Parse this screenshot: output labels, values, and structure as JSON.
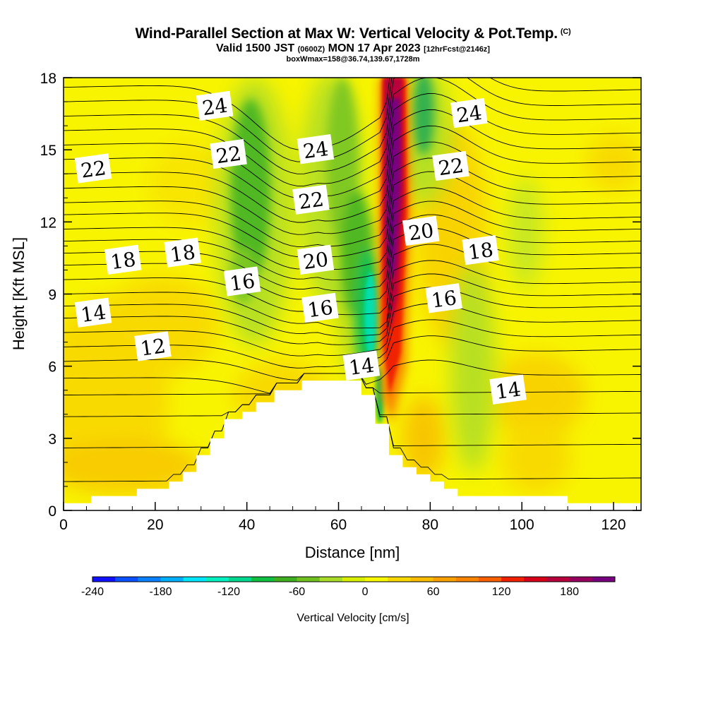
{
  "title": {
    "main": "Wind-Parallel Section at Max W: Vertical Velocity & Pot.Temp.",
    "copyright": "(C)",
    "valid_prefix": "Valid 1500 JST",
    "valid_utc": "(0600Z)",
    "valid_date": "MON 17 Apr 2023",
    "forecast": "[12hrFcst@2146z]",
    "box": "boxWmax=158@36.74,139.67,1728m"
  },
  "chart_data": {
    "type": "heatmap",
    "xlabel": "Distance [nm]",
    "ylabel": "Height [Kft MSL]",
    "xlim": [
      0,
      126
    ],
    "ylim": [
      0,
      18
    ],
    "xticks": [
      "0",
      "20",
      "40",
      "60",
      "80",
      "100",
      "120"
    ],
    "yticks": [
      "0",
      "3",
      "6",
      "9",
      "12",
      "15",
      "18"
    ],
    "colorbar": {
      "label": "Vertical Velocity [cm/s]",
      "min": -240,
      "max": 220,
      "step": 20,
      "ticks": [
        "-240",
        "-180",
        "-120",
        "-60",
        "0",
        "60",
        "120",
        "180"
      ],
      "colors": [
        "#1010ff",
        "#0a50ff",
        "#0a80ff",
        "#00b0ff",
        "#00e6ff",
        "#00f0c0",
        "#00d890",
        "#10c040",
        "#40b020",
        "#70c020",
        "#a8dc28",
        "#d8f000",
        "#f8f800",
        "#f8d800",
        "#f8bc00",
        "#f8a000",
        "#f88400",
        "#f86000",
        "#f02000",
        "#d80018",
        "#b8003c",
        "#980060",
        "#780080"
      ]
    },
    "vertical_velocity_features": [
      {
        "kind": "updraft",
        "x_center": 71.5,
        "y_range": [
          3.5,
          18
        ],
        "peak_cm_s": 220
      },
      {
        "kind": "downdraft",
        "x_center": 65,
        "y_range": [
          4,
          18
        ],
        "peak_cm_s": -140
      },
      {
        "kind": "downdraft",
        "x_center": 40,
        "y_range": [
          7,
          18
        ],
        "peak_cm_s": -100
      },
      {
        "kind": "downdraft",
        "x_center": 78,
        "y_range": [
          12,
          18
        ],
        "peak_cm_s": -80
      },
      {
        "kind": "downdraft",
        "x_center": 92,
        "y_range": [
          1,
          8
        ],
        "peak_cm_s": -40
      }
    ],
    "terrain": [
      [
        0,
        0.3
      ],
      [
        6,
        0.3
      ],
      [
        6,
        0.6
      ],
      [
        16,
        0.6
      ],
      [
        16,
        0.9
      ],
      [
        23,
        0.9
      ],
      [
        23,
        1.2
      ],
      [
        26,
        1.2
      ],
      [
        26,
        1.6
      ],
      [
        29,
        1.6
      ],
      [
        29,
        2.3
      ],
      [
        32,
        2.3
      ],
      [
        32,
        3
      ],
      [
        35,
        3
      ],
      [
        35,
        3.8
      ],
      [
        39,
        3.8
      ],
      [
        39,
        4.1
      ],
      [
        42,
        4.1
      ],
      [
        42,
        4.5
      ],
      [
        46,
        4.5
      ],
      [
        46,
        5.0
      ],
      [
        52,
        5.0
      ],
      [
        52,
        5.4
      ],
      [
        65,
        5.4
      ],
      [
        65,
        4.8
      ],
      [
        68,
        4.8
      ],
      [
        68,
        3.6
      ],
      [
        71,
        3.6
      ],
      [
        71,
        2.3
      ],
      [
        74,
        2.3
      ],
      [
        74,
        1.8
      ],
      [
        77,
        1.8
      ],
      [
        77,
        1.5
      ],
      [
        80,
        1.5
      ],
      [
        80,
        1.2
      ],
      [
        83,
        1.2
      ],
      [
        83,
        0.9
      ],
      [
        86,
        0.9
      ],
      [
        86,
        0.6
      ],
      [
        110,
        0.6
      ],
      [
        110,
        0.3
      ],
      [
        126,
        0.3
      ]
    ],
    "isentrope_labels": [
      {
        "text": "24",
        "x": 33,
        "y": 16.8
      },
      {
        "text": "22",
        "x": 6.5,
        "y": 14.2
      },
      {
        "text": "22",
        "x": 36,
        "y": 14.8
      },
      {
        "text": "24",
        "x": 55,
        "y": 15.0
      },
      {
        "text": "22",
        "x": 54,
        "y": 12.9
      },
      {
        "text": "24",
        "x": 88.5,
        "y": 16.5
      },
      {
        "text": "22",
        "x": 84.5,
        "y": 14.3
      },
      {
        "text": "20",
        "x": 78,
        "y": 11.6
      },
      {
        "text": "18",
        "x": 13,
        "y": 10.4
      },
      {
        "text": "18",
        "x": 26,
        "y": 10.7
      },
      {
        "text": "20",
        "x": 55,
        "y": 10.4
      },
      {
        "text": "18",
        "x": 91,
        "y": 10.8
      },
      {
        "text": "16",
        "x": 39,
        "y": 9.5
      },
      {
        "text": "16",
        "x": 56,
        "y": 8.4
      },
      {
        "text": "16",
        "x": 83,
        "y": 8.8
      },
      {
        "text": "14",
        "x": 6.5,
        "y": 8.2
      },
      {
        "text": "12",
        "x": 19.5,
        "y": 6.8
      },
      {
        "text": "14",
        "x": 65,
        "y": 6.0
      },
      {
        "text": "14",
        "x": 97,
        "y": 5.0
      }
    ]
  }
}
